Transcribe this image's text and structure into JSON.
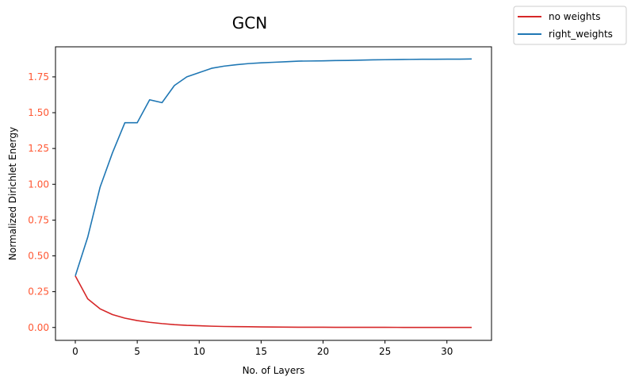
{
  "chart_data": {
    "type": "line",
    "title": "GCN",
    "xlabel": "No. of Layers",
    "ylabel": "Normalized Dirichlet Energy",
    "xlim": [
      -1.6,
      33.6
    ],
    "ylim": [
      -0.09,
      1.96
    ],
    "xticks": [
      0,
      5,
      10,
      15,
      20,
      25,
      30
    ],
    "yticks": [
      0.0,
      0.25,
      0.5,
      0.75,
      1.0,
      1.25,
      1.5,
      1.75
    ],
    "ytick_labels": [
      "0.00",
      "0.25",
      "0.50",
      "0.75",
      "1.00",
      "1.25",
      "1.50",
      "1.75"
    ],
    "ytick_color": "#ff5733",
    "grid": false,
    "legend_position": "outside top-right",
    "x": [
      0,
      1,
      2,
      3,
      4,
      5,
      6,
      7,
      8,
      9,
      10,
      11,
      12,
      13,
      14,
      15,
      16,
      17,
      18,
      19,
      20,
      21,
      22,
      23,
      24,
      25,
      26,
      27,
      28,
      29,
      30,
      31,
      32
    ],
    "series": [
      {
        "name": "no weights",
        "color": "#d62728",
        "values": [
          0.36,
          0.2,
          0.13,
          0.09,
          0.065,
          0.048,
          0.036,
          0.027,
          0.02,
          0.015,
          0.012,
          0.009,
          0.007,
          0.006,
          0.005,
          0.004,
          0.003,
          0.0025,
          0.002,
          0.0018,
          0.0015,
          0.0013,
          0.0011,
          0.001,
          0.0009,
          0.0008,
          0.0007,
          0.0006,
          0.0005,
          0.0005,
          0.0004,
          0.0004,
          0.0003
        ]
      },
      {
        "name": "right_weights",
        "color": "#1f77b4",
        "values": [
          0.36,
          0.63,
          0.98,
          1.22,
          1.43,
          1.43,
          1.59,
          1.57,
          1.69,
          1.75,
          1.78,
          1.81,
          1.825,
          1.835,
          1.843,
          1.848,
          1.852,
          1.856,
          1.86,
          1.861,
          1.862,
          1.864,
          1.865,
          1.867,
          1.869,
          1.87,
          1.871,
          1.872,
          1.873,
          1.873,
          1.874,
          1.874,
          1.875
        ]
      }
    ]
  }
}
